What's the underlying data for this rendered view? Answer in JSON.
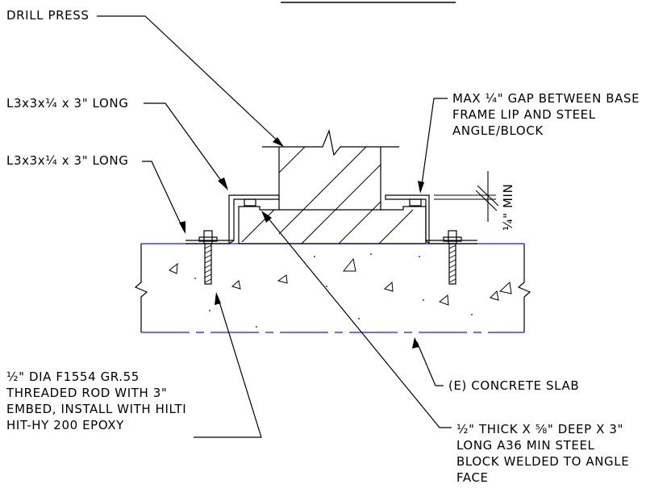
{
  "labels": {
    "drill_press": "DRILL PRESS",
    "angle_upper": "L3x3x¼ x 3\" LONG",
    "angle_lower": "L3x3x¼ x 3\" LONG",
    "gap_note": [
      "MAX ¼\" GAP BETWEEN BASE",
      "FRAME LIP AND STEEL",
      "ANGLE/BLOCK"
    ],
    "gap_dimension": "¼\" MIN",
    "rod_note": [
      "½\" DIA F1554 GR.55",
      "THREADED ROD WITH 3\"",
      "EMBED, INSTALL WITH HILTI",
      "HIT-HY 200 EPOXY"
    ],
    "slab_note": "(E) CONCRETE SLAB",
    "block_note": [
      "½\" THICK X ⅝\" DEEP X 3\"",
      "LONG A36 MIN STEEL",
      "BLOCK WELDED TO ANGLE",
      "FACE"
    ]
  },
  "colors": {
    "line": "#000000",
    "slab_edge": "#1a1adb",
    "background": "#ffffff"
  }
}
